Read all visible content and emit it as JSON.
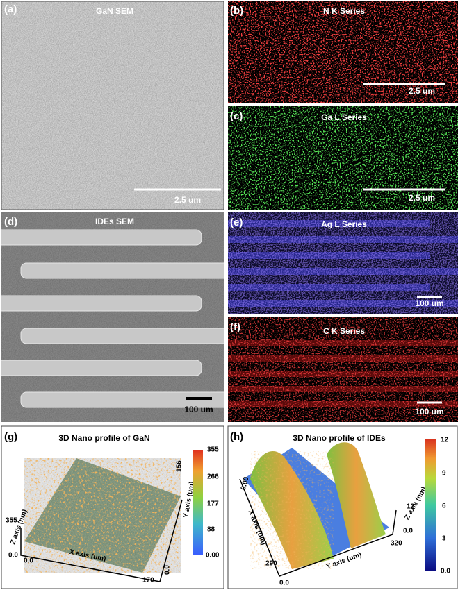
{
  "panels": [
    {
      "label": "(a)",
      "title": "GaN SEM",
      "scale_bar": "2.5 um"
    },
    {
      "label": "(b)",
      "title": "N K Series",
      "scale_bar": "2.5 um"
    },
    {
      "label": "(c)",
      "title": "Ga L Series",
      "scale_bar": "2.5 um"
    },
    {
      "label": "(d)",
      "title": "IDEs SEM",
      "scale_bar": "100 um"
    },
    {
      "label": "(e)",
      "title": "Ag L Series",
      "scale_bar": "100 um"
    },
    {
      "label": "(f)",
      "title": "C K Series",
      "scale_bar": "100 um"
    }
  ],
  "profiles": [
    {
      "label": "(g)",
      "title": "3D Nano profile of GaN",
      "colorbar_ticks": [
        "355",
        "266",
        "177",
        "88",
        "0.00"
      ],
      "x_axis": "X axis (um)",
      "y_axis": "Y axis (um)",
      "z_axis": "Z axis (nm)",
      "x_range": [
        "0.0",
        "170"
      ],
      "y_range": [
        "0.0",
        "156"
      ],
      "z_range": [
        "0.0",
        "355"
      ]
    },
    {
      "label": "(h)",
      "title": "3D Nano profile of IDEs",
      "colorbar_ticks": [
        "12",
        "9",
        "6",
        "3",
        "0.0"
      ],
      "x_axis": "X axis (um)",
      "y_axis": "Y axis (um)",
      "z_axis": "Z axis (nm)",
      "x_range": [
        "0.00",
        "290"
      ],
      "y_range": [
        "0.0",
        "320"
      ],
      "z_range": [
        "0.0",
        "12"
      ]
    }
  ]
}
